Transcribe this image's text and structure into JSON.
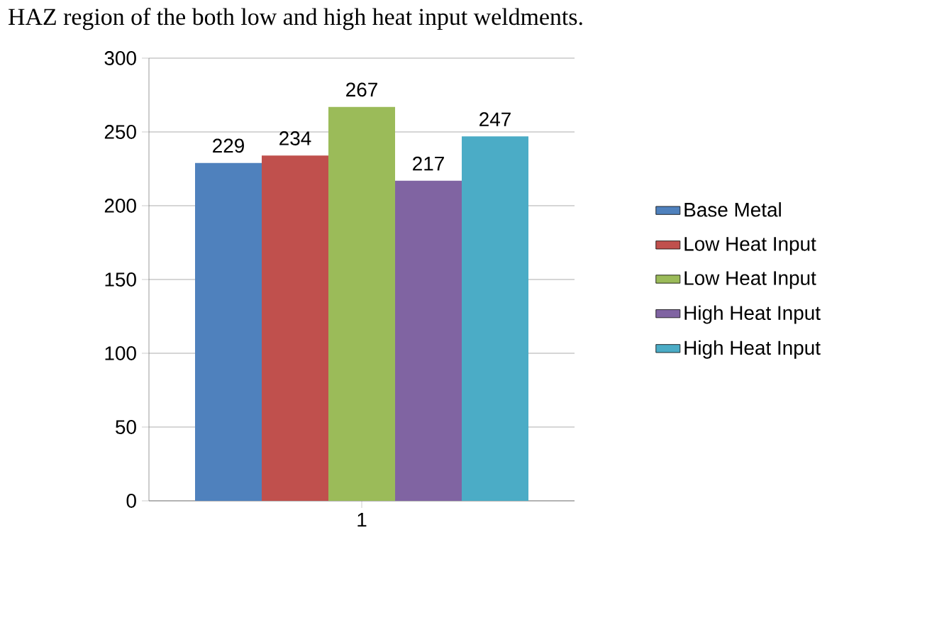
{
  "chart_data": {
    "type": "bar",
    "categories": [
      "1"
    ],
    "series": [
      {
        "name": "Base Metal",
        "color": "#4f81bd",
        "values": [
          229
        ]
      },
      {
        "name": "Low Heat Input",
        "color": "#c0504d",
        "values": [
          234
        ]
      },
      {
        "name": "Low Heat Input",
        "color": "#9bbb59",
        "values": [
          267
        ]
      },
      {
        "name": "High Heat Input",
        "color": "#8064a2",
        "values": [
          217
        ]
      },
      {
        "name": "High Heat Input",
        "color": "#4bacc6",
        "values": [
          247
        ]
      }
    ],
    "ylim": [
      0,
      300
    ],
    "yticks": [
      0,
      50,
      100,
      150,
      200,
      250,
      300
    ],
    "grid": "y",
    "legend": "right",
    "data_labels": true,
    "annotations": [
      "HAZ region of the both low and high heat input weldments."
    ]
  }
}
